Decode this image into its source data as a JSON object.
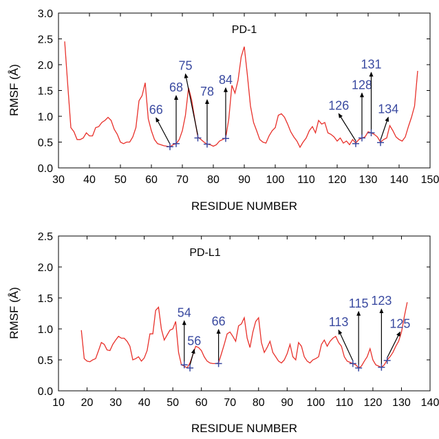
{
  "chart_data": [
    {
      "type": "line",
      "title": "PD-1",
      "xlabel": "RESIDUE NUMBER",
      "ylabel": "RMSF (Å)",
      "xlim": [
        30,
        150
      ],
      "ylim": [
        0.0,
        3.0
      ],
      "xticks": [
        "30",
        "40",
        "50",
        "60",
        "70",
        "80",
        "90",
        "100",
        "110",
        "120",
        "130",
        "140",
        "150"
      ],
      "yticks": [
        "0.0",
        "0.5",
        "1.0",
        "1.5",
        "2.0",
        "2.5",
        "3.0"
      ],
      "line_color": "#e8302a",
      "annotation_color": "#3a4aa0",
      "x": [
        32,
        33,
        34,
        35,
        36,
        37,
        38,
        39,
        40,
        41,
        42,
        43,
        44,
        45,
        46,
        47,
        48,
        49,
        50,
        51,
        52,
        53,
        54,
        55,
        56,
        57,
        58,
        59,
        60,
        61,
        62,
        63,
        64,
        65,
        66,
        67,
        68,
        69,
        70,
        71,
        72,
        73,
        74,
        75,
        76,
        77,
        78,
        79,
        80,
        81,
        82,
        83,
        84,
        85,
        86,
        87,
        88,
        89,
        90,
        91,
        92,
        93,
        94,
        95,
        96,
        97,
        98,
        99,
        100,
        101,
        102,
        103,
        104,
        105,
        106,
        107,
        108,
        109,
        110,
        111,
        112,
        113,
        114,
        115,
        116,
        117,
        118,
        119,
        120,
        121,
        122,
        123,
        124,
        125,
        126,
        127,
        128,
        129,
        130,
        131,
        132,
        133,
        134,
        135,
        136,
        137,
        138,
        139,
        140,
        141,
        142,
        143,
        144,
        145,
        146
      ],
      "y": [
        2.45,
        1.6,
        0.78,
        0.7,
        0.55,
        0.55,
        0.58,
        0.68,
        0.62,
        0.62,
        0.78,
        0.8,
        0.88,
        0.92,
        0.98,
        0.92,
        0.75,
        0.65,
        0.5,
        0.47,
        0.5,
        0.5,
        0.6,
        0.78,
        1.3,
        1.4,
        1.65,
        0.95,
        0.72,
        0.55,
        0.47,
        0.45,
        0.43,
        0.42,
        0.41,
        0.45,
        0.47,
        0.55,
        0.72,
        1.02,
        1.55,
        1.32,
        0.95,
        0.6,
        0.55,
        0.5,
        0.46,
        0.45,
        0.42,
        0.45,
        0.52,
        0.55,
        0.58,
        0.95,
        1.6,
        1.45,
        1.7,
        2.15,
        2.35,
        1.8,
        1.2,
        0.88,
        0.72,
        0.55,
        0.5,
        0.48,
        0.62,
        0.72,
        0.78,
        1.02,
        1.05,
        0.98,
        0.85,
        0.7,
        0.6,
        0.52,
        0.4,
        0.5,
        0.58,
        0.72,
        0.8,
        0.68,
        0.92,
        0.85,
        0.88,
        0.68,
        0.65,
        0.6,
        0.52,
        0.58,
        0.48,
        0.52,
        0.45,
        0.55,
        0.48,
        0.55,
        0.58,
        0.6,
        0.7,
        0.68,
        0.65,
        0.6,
        0.5,
        0.55,
        0.58,
        0.82,
        0.72,
        0.6,
        0.55,
        0.52,
        0.6,
        0.8,
        0.98,
        1.2,
        1.88
      ],
      "annotations": [
        {
          "label": "66",
          "x": 66,
          "y": 0.41,
          "tx": 61.5,
          "ty": 0.97
        },
        {
          "label": "68",
          "x": 68,
          "y": 0.47,
          "tx": 68,
          "ty": 1.4
        },
        {
          "label": "75",
          "x": 75,
          "y": 0.58,
          "tx": 71,
          "ty": 1.82
        },
        {
          "label": "78",
          "x": 78,
          "y": 0.46,
          "tx": 78,
          "ty": 1.32
        },
        {
          "label": "84",
          "x": 84,
          "y": 0.57,
          "tx": 84,
          "ty": 1.55
        },
        {
          "label": "126",
          "x": 126,
          "y": 0.47,
          "tx": 120.5,
          "ty": 1.05
        },
        {
          "label": "128",
          "x": 128,
          "y": 0.58,
          "tx": 128,
          "ty": 1.45
        },
        {
          "label": "131",
          "x": 131,
          "y": 0.68,
          "tx": 131,
          "ty": 1.85
        },
        {
          "label": "134",
          "x": 134,
          "y": 0.49,
          "tx": 136.5,
          "ty": 0.98
        }
      ]
    },
    {
      "type": "line",
      "title": "PD-L1",
      "xlabel": "RESIDUE NUMBER",
      "ylabel": "RMSF (Å)",
      "xlim": [
        10,
        140
      ],
      "ylim": [
        0.0,
        2.5
      ],
      "xticks": [
        "10",
        "20",
        "30",
        "40",
        "50",
        "60",
        "70",
        "80",
        "90",
        "100",
        "110",
        "120",
        "130",
        "140"
      ],
      "yticks": [
        "0.0",
        "0.5",
        "1.0",
        "1.5",
        "2.0",
        "2.5"
      ],
      "line_color": "#e8302a",
      "annotation_color": "#3a4aa0",
      "x": [
        18,
        19,
        20,
        21,
        22,
        23,
        24,
        25,
        26,
        27,
        28,
        29,
        30,
        31,
        32,
        33,
        34,
        35,
        36,
        37,
        38,
        39,
        40,
        41,
        42,
        43,
        44,
        45,
        46,
        47,
        48,
        49,
        50,
        51,
        52,
        53,
        54,
        55,
        56,
        57,
        58,
        59,
        60,
        61,
        62,
        63,
        64,
        65,
        66,
        67,
        68,
        69,
        70,
        71,
        72,
        73,
        74,
        75,
        76,
        77,
        78,
        79,
        80,
        81,
        82,
        83,
        84,
        85,
        86,
        87,
        88,
        89,
        90,
        91,
        92,
        93,
        94,
        95,
        96,
        97,
        98,
        99,
        100,
        101,
        102,
        103,
        104,
        105,
        106,
        107,
        108,
        109,
        110,
        111,
        112,
        113,
        114,
        115,
        116,
        117,
        118,
        119,
        120,
        121,
        122,
        123,
        124,
        125,
        126,
        127,
        128,
        129,
        130,
        131,
        132
      ],
      "y": [
        0.98,
        0.52,
        0.48,
        0.47,
        0.5,
        0.52,
        0.65,
        0.78,
        0.75,
        0.66,
        0.65,
        0.75,
        0.82,
        0.88,
        0.85,
        0.85,
        0.8,
        0.72,
        0.5,
        0.52,
        0.55,
        0.48,
        0.53,
        0.65,
        0.92,
        0.92,
        1.3,
        1.35,
        1.0,
        0.82,
        0.9,
        0.98,
        1.0,
        1.12,
        0.62,
        0.42,
        0.4,
        0.37,
        0.45,
        0.58,
        0.72,
        0.7,
        0.65,
        0.55,
        0.48,
        0.45,
        0.44,
        0.44,
        0.45,
        0.6,
        0.75,
        0.92,
        0.95,
        0.88,
        0.8,
        1.05,
        1.08,
        1.18,
        0.85,
        0.7,
        0.95,
        1.12,
        1.18,
        0.78,
        0.62,
        0.7,
        0.8,
        0.62,
        0.55,
        0.48,
        0.45,
        0.5,
        0.6,
        0.75,
        0.55,
        0.5,
        0.78,
        0.72,
        0.55,
        0.48,
        0.45,
        0.5,
        0.52,
        0.55,
        0.75,
        0.82,
        0.72,
        0.8,
        0.85,
        0.88,
        0.78,
        0.72,
        0.55,
        0.48,
        0.46,
        0.44,
        0.42,
        0.37,
        0.4,
        0.48,
        0.55,
        0.68,
        0.5,
        0.42,
        0.4,
        0.38,
        0.42,
        0.5,
        0.55,
        0.62,
        0.72,
        0.8,
        0.95,
        1.2,
        1.43
      ],
      "annotations": [
        {
          "label": "54",
          "x": 54,
          "y": 0.42,
          "tx": 54,
          "ty": 1.13
        },
        {
          "label": "56",
          "x": 56,
          "y": 0.37,
          "tx": 57.5,
          "ty": 0.67
        },
        {
          "label": "66",
          "x": 66,
          "y": 0.44,
          "tx": 66,
          "ty": 0.99
        },
        {
          "label": "113",
          "x": 113,
          "y": 0.44,
          "tx": 108,
          "ty": 0.98
        },
        {
          "label": "115",
          "x": 115,
          "y": 0.37,
          "tx": 115,
          "ty": 1.28
        },
        {
          "label": "123",
          "x": 123,
          "y": 0.38,
          "tx": 123,
          "ty": 1.32
        },
        {
          "label": "125",
          "x": 125,
          "y": 0.49,
          "tx": 129.5,
          "ty": 0.95
        }
      ]
    }
  ]
}
